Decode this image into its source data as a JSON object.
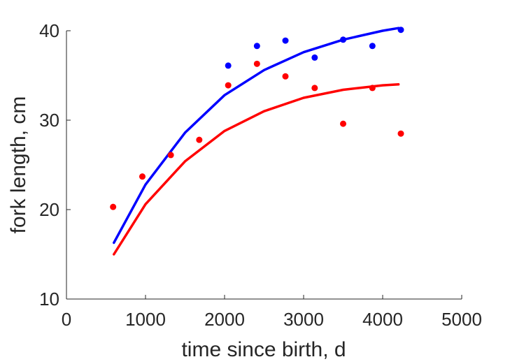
{
  "chart_data": {
    "type": "scatter",
    "title": "",
    "xlabel": "time since birth, d",
    "ylabel": "fork length, cm",
    "xlim": [
      0,
      5000
    ],
    "ylim": [
      10,
      40
    ],
    "xticks": [
      0,
      1000,
      2000,
      3000,
      4000,
      5000
    ],
    "yticks": [
      10,
      20,
      30,
      40
    ],
    "grid": false,
    "legend": "none",
    "series": [
      {
        "color": "#0000ff",
        "points": [
          {
            "x": 2046,
            "y": 36.1
          },
          {
            "x": 2410,
            "y": 38.3
          },
          {
            "x": 2770,
            "y": 38.9
          },
          {
            "x": 3140,
            "y": 37.0
          },
          {
            "x": 3500,
            "y": 39.0
          },
          {
            "x": 3870,
            "y": 38.3
          },
          {
            "x": 4230,
            "y": 40.1
          }
        ],
        "fit": {
          "x": [
            600,
            1000,
            1500,
            2000,
            2500,
            3000,
            3500,
            4000,
            4200
          ],
          "y": [
            16.3,
            22.8,
            28.6,
            32.8,
            35.6,
            37.6,
            39.0,
            40.0,
            40.3
          ]
        }
      },
      {
        "color": "#ff0000",
        "points": [
          {
            "x": 590,
            "y": 20.3
          },
          {
            "x": 960,
            "y": 23.7
          },
          {
            "x": 1320,
            "y": 26.1
          },
          {
            "x": 1680,
            "y": 27.8
          },
          {
            "x": 2046,
            "y": 33.9
          },
          {
            "x": 2410,
            "y": 36.3
          },
          {
            "x": 2770,
            "y": 34.9
          },
          {
            "x": 3140,
            "y": 33.6
          },
          {
            "x": 3500,
            "y": 29.6
          },
          {
            "x": 3870,
            "y": 33.6
          },
          {
            "x": 4230,
            "y": 28.5
          }
        ],
        "fit": {
          "x": [
            600,
            1000,
            1500,
            2000,
            2500,
            3000,
            3500,
            4000,
            4200
          ],
          "y": [
            15.0,
            20.6,
            25.4,
            28.8,
            31.0,
            32.5,
            33.4,
            33.9,
            34.0
          ]
        }
      }
    ]
  }
}
